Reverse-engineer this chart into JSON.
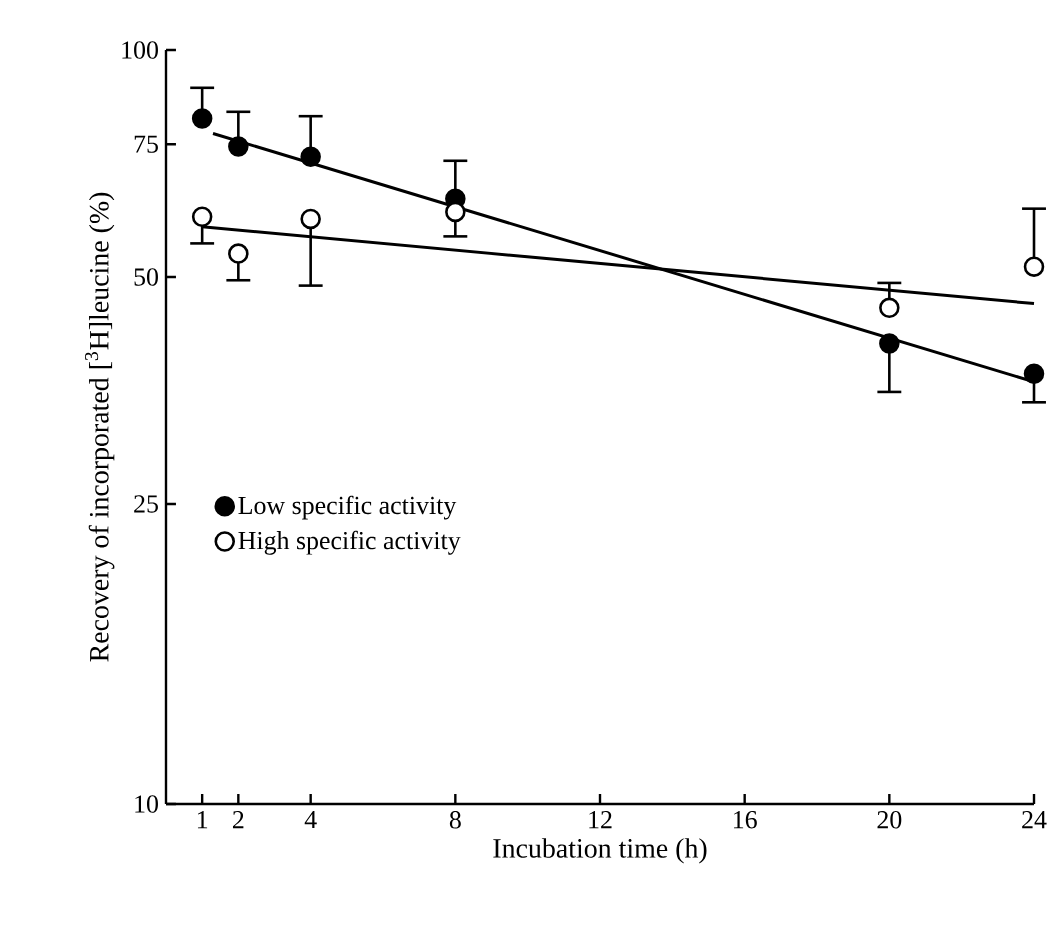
{
  "chart_data": {
    "type": "scatter",
    "xlabel": "Incubation time (h)",
    "ylabel": "Recovery of incorporated [$^{3}$H]leucine (%)",
    "x": [
      1,
      2,
      4,
      8,
      20,
      24
    ],
    "series": [
      {
        "name": "Low specific activity",
        "marker": "circle",
        "color": "#000000",
        "values": [
          81.1,
          74.5,
          72.2,
          63.5,
          40.8,
          37.2
        ],
        "errors": [
          [
            81.1,
            89.1
          ],
          [
            74.5,
            82.8
          ],
          [
            72.2,
            81.7
          ],
          [
            63.5,
            71.3
          ],
          [
            35.2,
            40.8
          ],
          [
            34.1,
            37.2
          ]
        ]
      },
      {
        "name": "High specific activity",
        "marker": "circle",
        "color": "#000000",
        "values": [
          60.1,
          53.7,
          59.7,
          61.0,
          45.5,
          51.6
        ],
        "errors": [
          [
            55.4,
            60.1
          ],
          [
            49.5,
            53.7
          ],
          [
            48.7,
            59.7
          ],
          [
            56.6,
            61.0
          ],
          [
            45.5,
            49.1
          ],
          [
            51.6,
            61.6
          ]
        ]
      },
      {
        "type": "line",
        "marker": "none",
        "color": "#000000",
        "x": [
          1.3,
          24
        ],
        "values": [
          77.5,
          36.3
        ]
      },
      {
        "type": "line",
        "marker": "none",
        "color": "#000000",
        "x": [
          1,
          24
        ],
        "values": [
          58.3,
          46.1
        ]
      }
    ],
    "xlim": [
      0,
      24
    ],
    "ylim": [
      10,
      100
    ],
    "xticks": [
      1,
      2,
      4,
      8,
      12,
      16,
      20,
      24
    ],
    "yticks": [
      10,
      25,
      50,
      75,
      100
    ],
    "log": "y",
    "legend": "left",
    "grid": false
  }
}
